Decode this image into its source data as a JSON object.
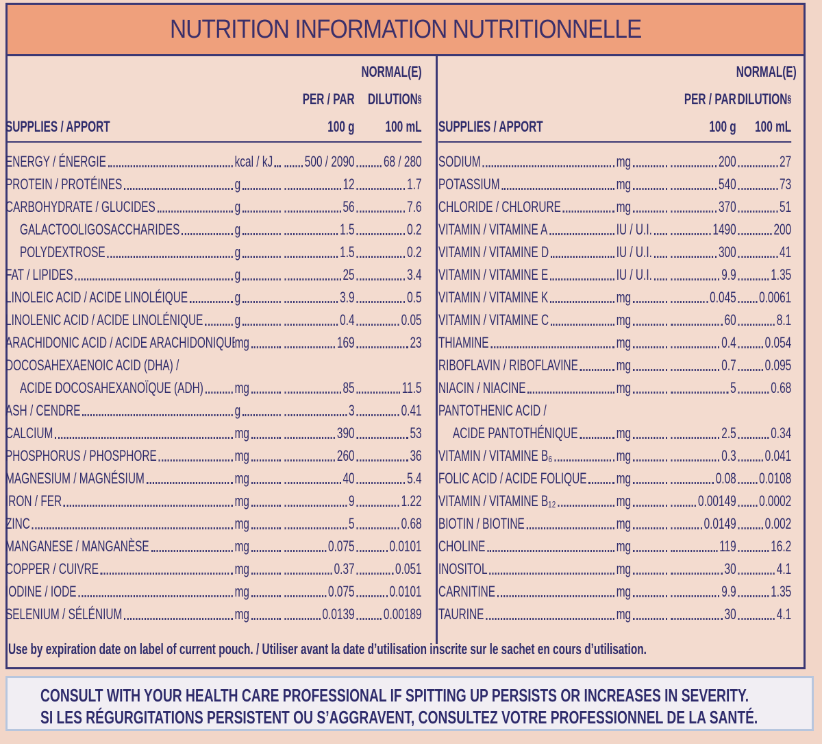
{
  "header": {
    "title": "NUTRITION INFORMATION NUTRITIONNELLE"
  },
  "panels": [
    {
      "columns": {
        "supplies": "SUPPLIES / APPORT",
        "per": "PER / PAR",
        "per_unit": "100 g",
        "dilution_head": "NORMAL(E)",
        "dilution": "DILUTION",
        "dilution_note": "§",
        "dilution_unit": "100 mL"
      },
      "rows": [
        {
          "name": [
            "ENERGY / ÉNERGIE"
          ],
          "unit": "kcal / kJ",
          "per": "500 / 2090",
          "dilution": "68 / 280"
        },
        {
          "name": [
            "PROTEIN / PROTÉINES"
          ],
          "unit": "g",
          "per": "12",
          "dilution": "1.7"
        },
        {
          "name": [
            "CARBOHYDRATE / GLUCIDES"
          ],
          "unit": "g",
          "per": "56",
          "dilution": "7.6",
          "items": [
            {
              "name": [
                "GALACTOOLIGOSACCHARIDES"
              ],
              "unit": "g",
              "per": "1.5",
              "dilution": "0.2"
            },
            {
              "name": [
                "POLYDEXTROSE"
              ],
              "unit": "g",
              "per": "1.5",
              "dilution": "0.2"
            }
          ]
        },
        {
          "name": [
            "FAT / LIPIDES"
          ],
          "unit": "g",
          "per": "25",
          "dilution": "3.4"
        },
        {
          "name": [
            "LINOLEIC ACID / ACIDE LINOLÉIQUE"
          ],
          "unit": "g",
          "per": "3.9",
          "dilution": "0.5"
        },
        {
          "name": [
            "LINOLENIC ACID / ACIDE LINOLÉNIQUE"
          ],
          "unit": "g",
          "per": "0.4",
          "dilution": "0.05"
        },
        {
          "name": [
            "ARACHIDONIC ACID / ACIDE ARACHIDONIQUE"
          ],
          "unit": "mg",
          "per": "169",
          "dilution": "23"
        },
        {
          "name": [
            "DOCOSAHEXAENOIC ACID (DHA) /",
            "ACIDE DOCOSAHEXANOÏQUE (ADH)"
          ],
          "unit": "mg",
          "per": "85",
          "dilution": "11.5"
        },
        {
          "name": [
            "ASH / CENDRE"
          ],
          "unit": "g",
          "per": "3",
          "dilution": "0.41"
        },
        {
          "name": [
            "CALCIUM"
          ],
          "unit": "mg",
          "per": "390",
          "dilution": "53"
        },
        {
          "name": [
            "PHOSPHORUS / PHOSPHORE"
          ],
          "unit": "mg",
          "per": "260",
          "dilution": "36"
        },
        {
          "name": [
            "MAGNESIUM / MAGNÉSIUM"
          ],
          "unit": "mg",
          "per": "40",
          "dilution": "5.4"
        },
        {
          "name": [
            "IRON / FER"
          ],
          "unit": "mg",
          "per": "9",
          "dilution": "1.22"
        },
        {
          "name": [
            "ZINC"
          ],
          "unit": "mg",
          "per": "5",
          "dilution": "0.68"
        },
        {
          "name": [
            "MANGANESE / MANGANÈSE"
          ],
          "unit": "mg",
          "per": "0.075",
          "dilution": "0.0101"
        },
        {
          "name": [
            "COPPER / CUIVRE"
          ],
          "unit": "mg",
          "per": "0.37",
          "dilution": "0.051"
        },
        {
          "name": [
            "IODINE / IODE"
          ],
          "unit": "mg",
          "per": "0.075",
          "dilution": "0.0101"
        },
        {
          "name": [
            "SELENIUM / SÉLÉNIUM"
          ],
          "unit": "mg",
          "per": "0.0139",
          "dilution": "0.00189"
        }
      ]
    },
    {
      "columns": {
        "supplies": "SUPPLIES / APPORT",
        "per": "PER / PAR",
        "per_unit": "100 g",
        "dilution_head": "NORMAL(E)",
        "dilution": "DILUTION",
        "dilution_note": "§",
        "dilution_unit": "100 mL"
      },
      "rows": [
        {
          "name": [
            "SODIUM"
          ],
          "unit": "mg",
          "per": "200",
          "dilution": "27"
        },
        {
          "name": [
            "POTASSIUM"
          ],
          "unit": "mg",
          "per": "540",
          "dilution": "73"
        },
        {
          "name": [
            "CHLORIDE / CHLORURE"
          ],
          "unit": "mg",
          "per": "370",
          "dilution": "51"
        },
        {
          "name": [
            "VITAMIN / VITAMINE A"
          ],
          "unit": "IU / U.I.",
          "per": "1490",
          "dilution": "200"
        },
        {
          "name": [
            "VITAMIN / VITAMINE D"
          ],
          "unit": "IU / U.I.",
          "per": "300",
          "dilution": "41"
        },
        {
          "name": [
            "VITAMIN / VITAMINE E"
          ],
          "unit": "IU / U.I.",
          "per": "9.9",
          "dilution": "1.35"
        },
        {
          "name": [
            "VITAMIN / VITAMINE K"
          ],
          "unit": "mg",
          "per": "0.045",
          "dilution": "0.0061"
        },
        {
          "name": [
            "VITAMIN / VITAMINE C"
          ],
          "unit": "mg",
          "per": "60",
          "dilution": "8.1"
        },
        {
          "name": [
            "THIAMINE"
          ],
          "unit": "mg",
          "per": "0.4",
          "dilution": "0.054"
        },
        {
          "name": [
            "RIBOFLAVIN / RIBOFLAVINE"
          ],
          "unit": "mg",
          "per": "0.7",
          "dilution": "0.095"
        },
        {
          "name": [
            "NIACIN / NIACINE"
          ],
          "unit": "mg",
          "per": "5",
          "dilution": "0.68"
        },
        {
          "name": [
            "PANTOTHENIC ACID /",
            "ACIDE PANTOTHÉNIQUE"
          ],
          "unit": "mg",
          "per": "2.5",
          "dilution": "0.34"
        },
        {
          "name": [
            "VITAMIN / VITAMINE B₆"
          ],
          "unit": "mg",
          "per": "0.3",
          "dilution": "0.041"
        },
        {
          "name": [
            "FOLIC ACID / ACIDE FOLIQUE"
          ],
          "unit": "mg",
          "per": "0.08",
          "dilution": "0.0108"
        },
        {
          "name": [
            "VITAMIN / VITAMINE B₁₂"
          ],
          "unit": "mg",
          "per": "0.00149",
          "dilution": "0.0002"
        },
        {
          "name": [
            "BIOTIN / BIOTINE"
          ],
          "unit": "mg",
          "per": "0.0149",
          "dilution": "0.002"
        },
        {
          "name": [
            "CHOLINE"
          ],
          "unit": "mg",
          "per": "119",
          "dilution": "16.2"
        },
        {
          "name": [
            "INOSITOL"
          ],
          "unit": "mg",
          "per": "30",
          "dilution": "4.1"
        },
        {
          "name": [
            "CARNITINE"
          ],
          "unit": "mg",
          "per": "9.9",
          "dilution": "1.35"
        },
        {
          "name": [
            "TAURINE"
          ],
          "unit": "mg",
          "per": "30",
          "dilution": "4.1"
        }
      ]
    }
  ],
  "footer": {
    "note": "Use by expiration date on label of current pouch. / Utiliser avant la date d’utilisation inscrite sur le sachet en cours d’utilisation."
  },
  "warning": {
    "lines": [
      "CONSULT WITH YOUR HEALTH CARE PROFESSIONAL IF SPITTING UP PERSISTS OR INCREASES IN SEVERITY.",
      "SI LES RÉGURGITATIONS PERSISTENT OU S’AGGRAVENT, CONSULTEZ VOTRE PROFESSIONNEL DE LA SANTÉ."
    ]
  }
}
